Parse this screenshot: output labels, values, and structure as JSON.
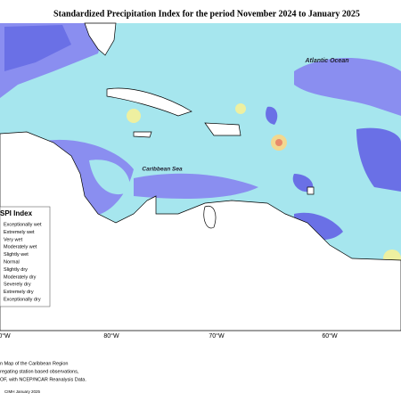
{
  "title": "Standardized Precipitation Index for the period November 2024 to January 2025",
  "map": {
    "labels": [
      "Atlantic Ocean",
      "Caribbean Sea"
    ],
    "longitudes": [
      "0°W",
      "80°W",
      "70°W",
      "60°W"
    ],
    "legend": {
      "title": "SPI Index",
      "items": [
        "Exceptionally wet",
        "Extremely wet",
        "Very wet",
        "Moderately wet",
        "Slightly wet",
        "Normal",
        "Slightly dry",
        "Moderately dry",
        "Severely dry",
        "Extremely dry",
        "Exceptionally dry"
      ]
    }
  },
  "footer": {
    "lines": [
      "n Map of the Caribbean Region",
      "regating station based observations,",
      "OF, with NCEP/NCAR Reanalysis Data."
    ],
    "credit": "CIMH January 2025"
  }
}
